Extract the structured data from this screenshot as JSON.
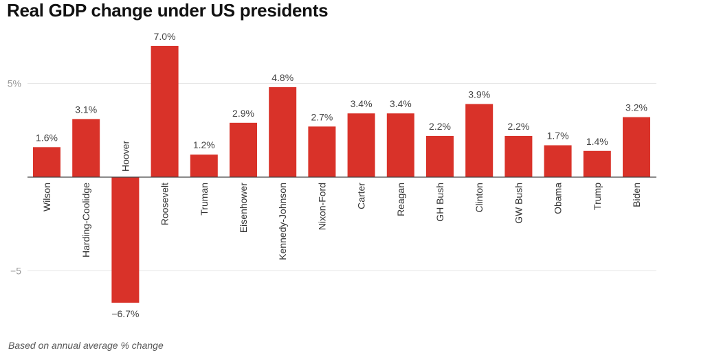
{
  "chart_data": {
    "type": "bar",
    "title": "Real GDP change under US presidents",
    "note": "Based on annual average % change",
    "categories": [
      "Wilson",
      "Harding-Coolidge",
      "Hoover",
      "Roosevelt",
      "Truman",
      "Eisenhower",
      "Kennedy-Johnson",
      "Nixon-Ford",
      "Carter",
      "Reagan",
      "GH Bush",
      "Clinton",
      "GW Bush",
      "Obama",
      "Trump",
      "Biden"
    ],
    "values": [
      1.6,
      3.1,
      -6.7,
      7.0,
      1.2,
      2.9,
      4.8,
      2.7,
      3.4,
      3.4,
      2.2,
      3.9,
      2.2,
      1.7,
      1.4,
      3.2
    ],
    "data_labels": [
      "1.6%",
      "3.1%",
      "−6.7%",
      "7.0%",
      "1.2%",
      "2.9%",
      "4.8%",
      "2.7%",
      "3.4%",
      "3.4%",
      "2.2%",
      "3.9%",
      "2.2%",
      "1.7%",
      "1.4%",
      "3.2%"
    ],
    "y_ticks": [
      {
        "value": 5,
        "label": "5%"
      },
      {
        "value": -5,
        "label": "−5"
      }
    ],
    "ylim": [
      -7.3,
      7.5
    ],
    "grid": true,
    "bar_color": "#d93229"
  }
}
